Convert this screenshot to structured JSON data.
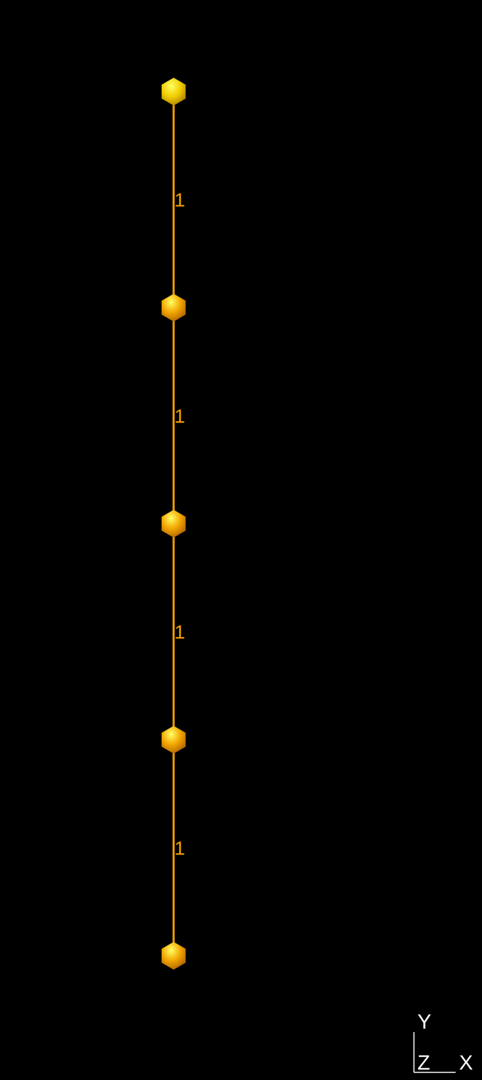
{
  "scene": {
    "background": "#000000",
    "bond_color": "#f5a000",
    "atom_colors": {
      "highlight": "#ffff66",
      "base": "#f2a600",
      "shadow": "#b86a00",
      "first_atom_base": "#f2cf00"
    },
    "atoms": [
      {
        "name": "atom-1"
      },
      {
        "name": "atom-2"
      },
      {
        "name": "atom-3"
      },
      {
        "name": "atom-4"
      },
      {
        "name": "atom-5"
      }
    ],
    "bonds": [
      {
        "label": "1"
      },
      {
        "label": "1"
      },
      {
        "label": "1"
      },
      {
        "label": "1"
      }
    ]
  },
  "axes": {
    "y_label": "Y",
    "z_label": "Z",
    "x_label": "X",
    "color": "#ffffff"
  }
}
